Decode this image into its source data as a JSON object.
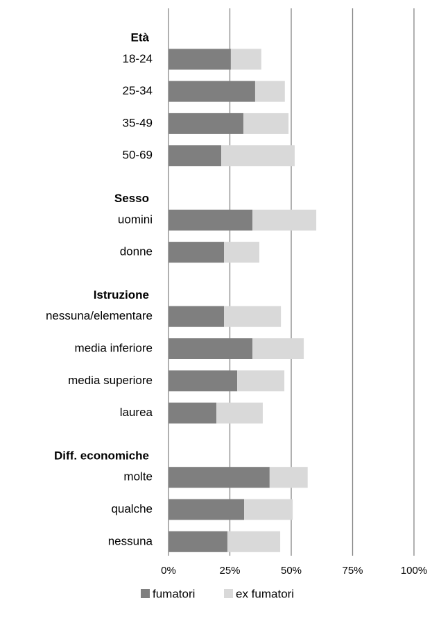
{
  "chart_data": {
    "type": "stacked-bar-horizontal",
    "groups": [
      {
        "name": "Età",
        "categories": [
          "18-24",
          "25-34",
          "35-49",
          "50-69"
        ]
      },
      {
        "name": "Sesso",
        "categories": [
          "uomini",
          "donne"
        ]
      },
      {
        "name": "Istruzione",
        "categories": [
          "nessuna/elementare",
          "media inferiore",
          "media superiore",
          "laurea"
        ]
      },
      {
        "name": "Diff. economiche",
        "categories": [
          "molte",
          "qualche",
          "nessuna"
        ]
      }
    ],
    "series": [
      {
        "name": "fumatori",
        "color": "#7f7f7f",
        "values": [
          25.4,
          35.3,
          30.5,
          21.5,
          34.2,
          22.6,
          22.6,
          34.2,
          28.0,
          19.5,
          41.2,
          30.8,
          24.0
        ]
      },
      {
        "name": "ex fumatori",
        "color": "#d9d9d9",
        "values": [
          12.4,
          12.1,
          18.4,
          29.9,
          26.0,
          14.4,
          23.2,
          20.9,
          19.2,
          18.9,
          15.5,
          19.8,
          21.5
        ]
      }
    ],
    "xlim": [
      0,
      100
    ],
    "xticks": [
      {
        "value": 0,
        "label": "0%"
      },
      {
        "value": 25,
        "label": "25%"
      },
      {
        "value": 50,
        "label": "50%"
      },
      {
        "value": 75,
        "label": "75%"
      },
      {
        "value": 100,
        "label": "100%"
      }
    ],
    "grid": true,
    "legend": "bottom"
  }
}
